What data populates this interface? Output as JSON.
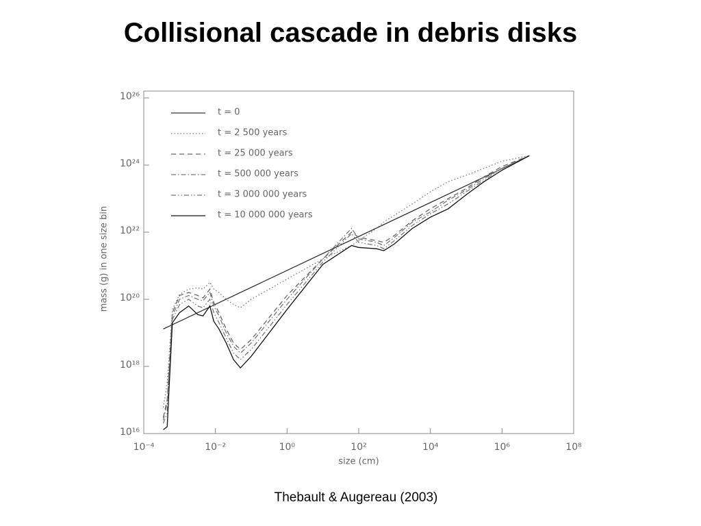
{
  "title": "Collisional cascade in debris disks",
  "caption": "Thebault & Augereau (2003)",
  "chart_data": {
    "type": "line",
    "x_label": "size (cm)",
    "y_label": "mass (g) in one size bin",
    "xscale": "log",
    "yscale": "log",
    "xlim": [
      0.0001,
      100000000
    ],
    "ylim": [
      1e+16,
      1e+26
    ],
    "xticks": [
      {
        "value": 0.0001,
        "label": "10⁻⁴"
      },
      {
        "value": 0.01,
        "label": "10⁻²"
      },
      {
        "value": 1,
        "label": "10⁰"
      },
      {
        "value": 100,
        "label": "10²"
      },
      {
        "value": 10000,
        "label": "10⁴"
      },
      {
        "value": 1000000,
        "label": "10⁶"
      },
      {
        "value": 100000000,
        "label": "10⁸"
      }
    ],
    "yticks": [
      {
        "value": 1e+16,
        "label": "10¹⁶"
      },
      {
        "value": 1e+18,
        "label": "10¹⁸"
      },
      {
        "value": 1e+20,
        "label": "10²⁰"
      },
      {
        "value": 1e+22,
        "label": "10²²"
      },
      {
        "value": 1e+24,
        "label": "10²⁴"
      },
      {
        "value": 1e+26,
        "label": "10²⁶"
      }
    ],
    "series": [
      {
        "name": "t = 0",
        "color": "#333333",
        "line_style": "solid",
        "x": [
          0.00035,
          5800000
        ],
        "values": [
          1.3e+19,
          1.9e+24
        ]
      },
      {
        "name": "t = 2 500 years",
        "color": "#777777",
        "line_style": "dotted",
        "x": [
          0.00035,
          0.00045,
          0.00063,
          0.001,
          0.0018,
          0.0032,
          0.0045,
          0.007,
          0.009,
          0.0126,
          0.02,
          0.032,
          0.05,
          0.1,
          1,
          10,
          63,
          100,
          316,
          500,
          1000,
          3160,
          10000,
          31600,
          100000,
          316000,
          1000000,
          5800000
        ],
        "values": [
          6e+16,
          3e+17,
          5e+19,
          1.4e+20,
          2e+20,
          2.2e+20,
          2e+20,
          3.2e+20,
          2e+20,
          1.6e+20,
          1e+20,
          7e+19,
          5.6e+19,
          1e+20,
          4e+20,
          1.6e+21,
          4e+21,
          5.6e+21,
          1.3e+22,
          2e+22,
          3.2e+22,
          7e+22,
          1.6e+23,
          3.2e+23,
          5e+23,
          8e+23,
          1.3e+24,
          1.9e+24
        ]
      },
      {
        "name": "t = 25 000 years",
        "color": "#666666",
        "line_style": "dashed",
        "x": [
          0.00035,
          0.00045,
          0.00063,
          0.001,
          0.0018,
          0.0032,
          0.0045,
          0.007,
          0.009,
          0.0126,
          0.02,
          0.032,
          0.05,
          0.1,
          1,
          10,
          63,
          100,
          316,
          500,
          1000,
          3160,
          10000,
          31600,
          100000,
          316000,
          1000000,
          5800000
        ],
        "values": [
          3e+16,
          1e+17,
          4e+19,
          1.3e+20,
          1.6e+20,
          1.3e+20,
          1.1e+20,
          2e+20,
          8e+19,
          4e+19,
          1.3e+19,
          5e+18,
          3.2e+18,
          6.3e+18,
          1.3e+20,
          1.6e+21,
          1e+22,
          7e+21,
          5.6e+21,
          5e+21,
          8e+21,
          2.2e+22,
          5e+22,
          1e+23,
          2e+23,
          4.5e+23,
          9e+23,
          1.9e+24
        ]
      },
      {
        "name": "t = 500 000 years",
        "color": "#777777",
        "line_style": "dashdot",
        "x": [
          0.00035,
          0.00045,
          0.00063,
          0.001,
          0.0018,
          0.0032,
          0.0045,
          0.007,
          0.009,
          0.0126,
          0.02,
          0.032,
          0.05,
          0.1,
          1,
          10,
          63,
          100,
          316,
          500,
          1000,
          3160,
          10000,
          31600,
          100000,
          316000,
          1000000,
          5800000
        ],
        "values": [
          2.5e+16,
          8e+16,
          3.2e+19,
          1e+20,
          1.3e+20,
          1e+20,
          9e+19,
          1.6e+20,
          6.3e+19,
          3.2e+19,
          1e+19,
          4e+18,
          2.5e+18,
          5e+18,
          1e+20,
          1.6e+21,
          1.3e+22,
          6.3e+21,
          5e+21,
          4e+21,
          7e+21,
          2e+22,
          4e+22,
          9e+22,
          1.8e+23,
          4e+23,
          8e+23,
          1.9e+24
        ]
      },
      {
        "name": "t = 3 000 000 years",
        "color": "#777777",
        "line_style": "dashdotdot",
        "x": [
          0.00035,
          0.00045,
          0.00063,
          0.001,
          0.0018,
          0.0032,
          0.0045,
          0.007,
          0.009,
          0.0126,
          0.02,
          0.032,
          0.05,
          0.1,
          1,
          10,
          63,
          100,
          316,
          500,
          1000,
          3160,
          10000,
          31600,
          100000,
          316000,
          1000000,
          5800000
        ],
        "values": [
          2e+16,
          4e+16,
          2.5e+19,
          7e+19,
          1e+20,
          6.3e+19,
          5.6e+19,
          1e+20,
          4e+19,
          2e+19,
          7e+18,
          2.5e+18,
          1.6e+18,
          3.2e+18,
          7e+19,
          1.3e+21,
          9e+21,
          5e+21,
          4e+21,
          3.2e+21,
          5.6e+21,
          1.6e+22,
          3.5e+22,
          7e+22,
          1.6e+23,
          3.5e+23,
          8e+23,
          1.9e+24
        ]
      },
      {
        "name": "t = 10 000 000 years",
        "color": "#111111",
        "line_style": "solid",
        "x": [
          0.00035,
          0.00045,
          0.00063,
          0.001,
          0.0018,
          0.0032,
          0.0045,
          0.007,
          0.009,
          0.0126,
          0.02,
          0.032,
          0.05,
          0.1,
          1,
          10,
          63,
          100,
          316,
          500,
          1000,
          3160,
          10000,
          31600,
          100000,
          316000,
          1000000,
          5800000
        ],
        "values": [
          1.3e+16,
          1.6e+16,
          2e+19,
          4e+19,
          6.3e+19,
          3.5e+19,
          3.2e+19,
          6.3e+19,
          2.2e+19,
          1.3e+19,
          5e+18,
          1.6e+18,
          9e+17,
          2e+18,
          5e+19,
          1.1e+21,
          4e+21,
          3.5e+21,
          3.2e+21,
          2.8e+21,
          4.5e+21,
          1.3e+22,
          2.8e+22,
          5e+22,
          1.3e+23,
          3.2e+23,
          7e+23,
          1.9e+24
        ]
      }
    ]
  }
}
